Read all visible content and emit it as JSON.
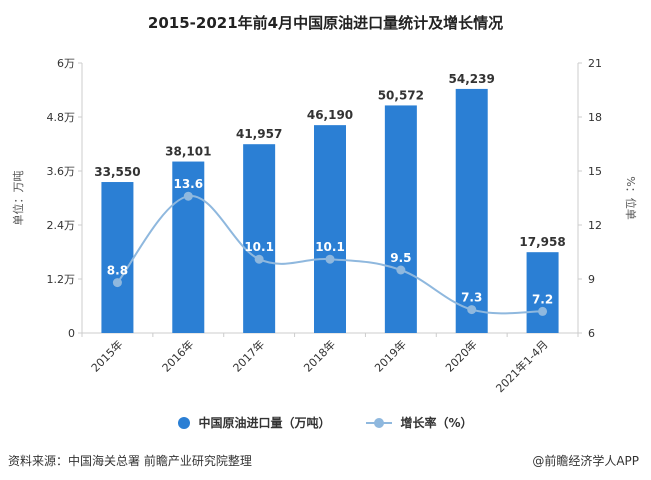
{
  "chart_data": {
    "type": "bar",
    "title": "2015-2021年前4月中国原油进口量统计及增长情况",
    "categories": [
      "2015年",
      "2016年",
      "2017年",
      "2018年",
      "2019年",
      "2020年",
      "2021年1-4月"
    ],
    "series": [
      {
        "name": "中国原油进口量（万吨）",
        "type": "bar",
        "axis": "left",
        "values": [
          33550,
          38101,
          41957,
          46190,
          50572,
          54239,
          17958
        ],
        "labels": [
          "33,550",
          "38,101",
          "41,957",
          "46,190",
          "50,572",
          "54,239",
          "17,958"
        ]
      },
      {
        "name": "增长率（%）",
        "type": "line",
        "axis": "right",
        "values": [
          8.8,
          13.6,
          10.1,
          10.1,
          9.5,
          7.3,
          7.2
        ],
        "labels": [
          "8.8",
          "13.6",
          "10.1",
          "10.1",
          "9.5",
          "7.3",
          "7.2"
        ]
      }
    ],
    "ylabel": "单位：万吨",
    "y2label": "%：位单",
    "ylim": [
      0,
      60000
    ],
    "y2lim": [
      6,
      21
    ],
    "yticks": [
      0,
      12000,
      24000,
      36000,
      48000,
      60000
    ],
    "yticklabels": [
      "0",
      "1.2万",
      "2.4万",
      "3.6万",
      "4.8万",
      "6万"
    ],
    "y2ticks": [
      6,
      9,
      12,
      15,
      18,
      21
    ],
    "y2ticklabels": [
      "6",
      "9",
      "12",
      "15",
      "18",
      "21"
    ],
    "grid": false,
    "legend_position": "bottom",
    "colors": {
      "bar": "#2b7fd4",
      "line": "#8fb8de",
      "axis": "#cccccc",
      "text": "#333333"
    }
  },
  "source_text": "资料来源：中国海关总署 前瞻产业研究院整理",
  "brand_text": "@前瞻经济学人APP"
}
